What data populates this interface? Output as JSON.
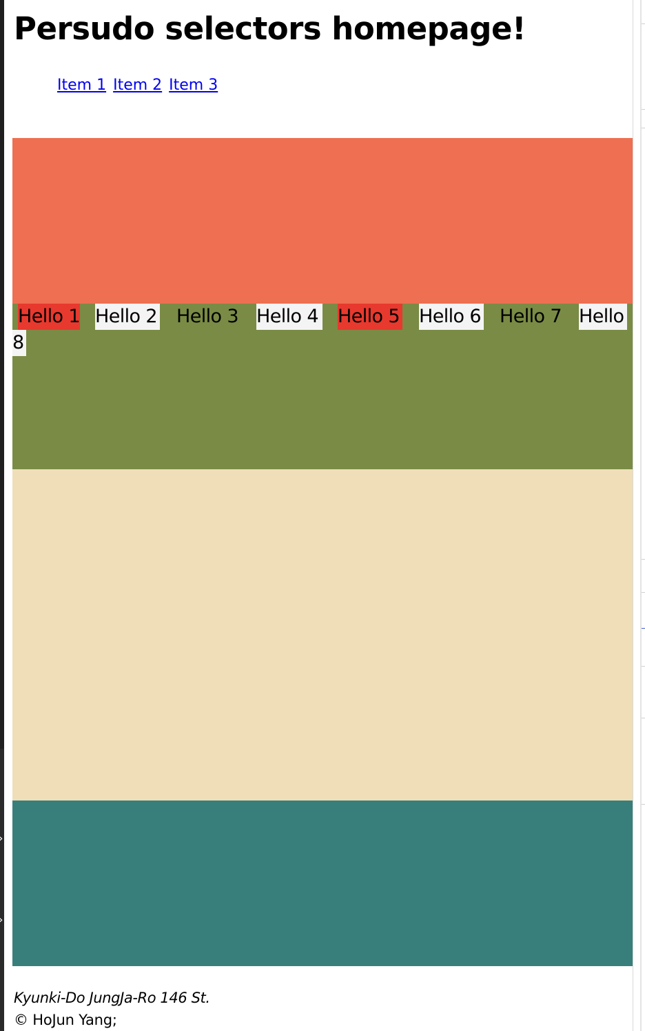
{
  "header": {
    "title": "Persudo selectors homepage!"
  },
  "nav": {
    "items": [
      {
        "label": "Item 1"
      },
      {
        "label": "Item 2"
      },
      {
        "label": "Item 3"
      }
    ]
  },
  "colors": {
    "block_1": "#ee6f51",
    "block_2": "#7a8b45",
    "block_3": "#f0deb9",
    "block_4": "#387f7c",
    "hello_highlight_red": "#e8392e",
    "hello_highlight_white": "#f4f4f4",
    "link": "#0000ee"
  },
  "hellos": [
    {
      "label": "Hello 1",
      "style": "red"
    },
    {
      "label": "Hello 2",
      "style": "white"
    },
    {
      "label": "Hello 3",
      "style": "plain"
    },
    {
      "label": "Hello 4",
      "style": "white"
    },
    {
      "label": "Hello 5",
      "style": "red"
    },
    {
      "label": "Hello 6",
      "style": "white"
    },
    {
      "label": "Hello 7",
      "style": "plain"
    },
    {
      "label_part1": "Hello",
      "label_part2": "8",
      "style": "white"
    }
  ],
  "footer": {
    "address": "Kyunki-Do JungJa-Ro 146 St.",
    "copyright": "© HoJun Yang;"
  }
}
